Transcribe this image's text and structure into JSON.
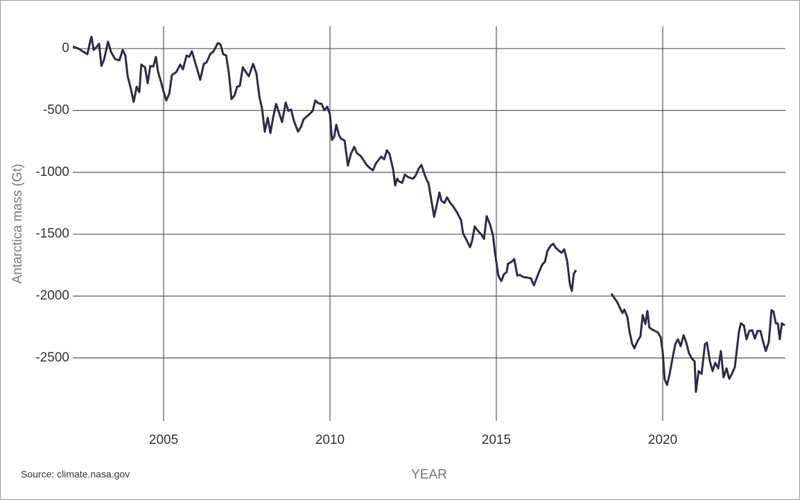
{
  "chart_data": {
    "type": "line",
    "y_label": "Antarctica mass (Gt)",
    "x_label": "YEAR",
    "source": "Source:  climate.nasa.gov",
    "color": "#2e2a45",
    "grid": true,
    "xlim": [
      2002.27,
      2023.69
    ],
    "xticks": [
      2005,
      2010,
      2015,
      2020
    ],
    "ylim": [
      -3010,
      180
    ],
    "yticks": [
      0,
      -500,
      -1000,
      -1500,
      -2000,
      -2500
    ],
    "x": [
      2002.27,
      2002.44,
      2002.6,
      2002.71,
      2002.79,
      2002.83,
      2002.9,
      2003.0,
      2003.06,
      2003.13,
      2003.21,
      2003.33,
      2003.42,
      2003.54,
      2003.67,
      2003.77,
      2003.85,
      2003.92,
      2004.0,
      2004.1,
      2004.19,
      2004.27,
      2004.33,
      2004.44,
      2004.52,
      2004.6,
      2004.69,
      2004.77,
      2004.83,
      2004.92,
      2005.0,
      2005.08,
      2005.17,
      2005.25,
      2005.38,
      2005.5,
      2005.58,
      2005.69,
      2005.77,
      2005.85,
      2005.98,
      2006.1,
      2006.21,
      2006.29,
      2006.4,
      2006.5,
      2006.63,
      2006.71,
      2006.79,
      2006.88,
      2006.96,
      2007.04,
      2007.13,
      2007.21,
      2007.29,
      2007.38,
      2007.46,
      2007.56,
      2007.69,
      2007.79,
      2007.88,
      2007.96,
      2008.04,
      2008.13,
      2008.21,
      2008.29,
      2008.38,
      2008.48,
      2008.56,
      2008.67,
      2008.75,
      2008.83,
      2008.92,
      2009.04,
      2009.13,
      2009.21,
      2009.38,
      2009.48,
      2009.56,
      2009.65,
      2009.75,
      2009.83,
      2009.92,
      2010.0,
      2010.06,
      2010.13,
      2010.19,
      2010.27,
      2010.33,
      2010.44,
      2010.54,
      2010.63,
      2010.73,
      2010.81,
      2010.92,
      2011.02,
      2011.1,
      2011.21,
      2011.29,
      2011.38,
      2011.46,
      2011.54,
      2011.63,
      2011.71,
      2011.79,
      2011.9,
      2011.96,
      2012.02,
      2012.08,
      2012.17,
      2012.25,
      2012.33,
      2012.42,
      2012.5,
      2012.58,
      2012.67,
      2012.75,
      2012.83,
      2012.9,
      2012.96,
      2013.04,
      2013.13,
      2013.21,
      2013.29,
      2013.35,
      2013.44,
      2013.52,
      2013.6,
      2013.69,
      2013.81,
      2013.94,
      2014.0,
      2014.13,
      2014.21,
      2014.27,
      2014.35,
      2014.44,
      2014.54,
      2014.63,
      2014.71,
      2014.81,
      2014.9,
      2014.96,
      2015.06,
      2015.15,
      2015.23,
      2015.31,
      2015.35,
      2015.46,
      2015.54,
      2015.63,
      2015.71,
      2015.81,
      2015.94,
      2016.04,
      2016.13,
      2016.21,
      2016.29,
      2016.38,
      2016.46,
      2016.54,
      2016.63,
      2016.71,
      2016.79,
      2016.88,
      2016.96,
      2017.04,
      2017.13,
      2017.21,
      2017.27,
      2017.33,
      2017.4,
      2017.9,
      2018.46,
      2018.54,
      2018.63,
      2018.71,
      2018.79,
      2018.85,
      2018.94,
      2019.0,
      2019.08,
      2019.15,
      2019.25,
      2019.33,
      2019.4,
      2019.48,
      2019.54,
      2019.6,
      2019.69,
      2019.77,
      2019.85,
      2019.94,
      2020.0,
      2020.06,
      2020.13,
      2020.21,
      2020.29,
      2020.38,
      2020.46,
      2020.54,
      2020.63,
      2020.71,
      2020.79,
      2020.88,
      2020.96,
      2021.0,
      2021.08,
      2021.17,
      2021.27,
      2021.33,
      2021.42,
      2021.5,
      2021.58,
      2021.67,
      2021.75,
      2021.83,
      2021.92,
      2022.0,
      2022.08,
      2022.17,
      2022.23,
      2022.29,
      2022.35,
      2022.44,
      2022.52,
      2022.6,
      2022.69,
      2022.77,
      2022.85,
      2022.94,
      2023.02,
      2023.1,
      2023.19,
      2023.27,
      2023.33,
      2023.4,
      2023.46,
      2023.52,
      2023.58,
      2023.67
    ],
    "values": [
      17,
      0,
      -28,
      -45,
      56,
      95,
      -11,
      17,
      39,
      -140,
      -89,
      56,
      -28,
      -84,
      -95,
      -11,
      -56,
      -224,
      -308,
      -431,
      -308,
      -352,
      -129,
      -151,
      -280,
      -140,
      -145,
      -67,
      -185,
      -268,
      -347,
      -419,
      -364,
      -213,
      -190,
      -129,
      -168,
      -56,
      -67,
      -22,
      -140,
      -252,
      -123,
      -112,
      -45,
      -22,
      45,
      34,
      -45,
      -56,
      -196,
      -408,
      -380,
      -308,
      -302,
      -151,
      -185,
      -224,
      -123,
      -201,
      -392,
      -487,
      -671,
      -559,
      -682,
      -559,
      -447,
      -526,
      -593,
      -436,
      -503,
      -492,
      -587,
      -671,
      -632,
      -570,
      -531,
      -503,
      -419,
      -442,
      -447,
      -498,
      -470,
      -531,
      -738,
      -710,
      -615,
      -699,
      -727,
      -744,
      -945,
      -850,
      -794,
      -845,
      -867,
      -906,
      -940,
      -968,
      -984,
      -928,
      -900,
      -873,
      -895,
      -822,
      -850,
      -979,
      -1107,
      -1051,
      -1074,
      -1085,
      -1018,
      -1035,
      -1046,
      -1051,
      -1024,
      -968,
      -940,
      -1007,
      -1057,
      -1085,
      -1214,
      -1359,
      -1264,
      -1163,
      -1230,
      -1247,
      -1202,
      -1242,
      -1270,
      -1320,
      -1387,
      -1493,
      -1560,
      -1605,
      -1555,
      -1437,
      -1471,
      -1499,
      -1538,
      -1354,
      -1421,
      -1510,
      -1650,
      -1834,
      -1879,
      -1823,
      -1807,
      -1739,
      -1723,
      -1700,
      -1834,
      -1829,
      -1846,
      -1851,
      -1857,
      -1913,
      -1857,
      -1801,
      -1745,
      -1723,
      -1633,
      -1594,
      -1577,
      -1611,
      -1633,
      -1650,
      -1622,
      -1717,
      -1902,
      -1958,
      -1818,
      -1790,
      null,
      -1980,
      -2013,
      -2047,
      -2092,
      -2137,
      -2109,
      -2170,
      -2282,
      -2383,
      -2422,
      -2360,
      -2327,
      -2153,
      -2226,
      -2120,
      -2254,
      -2271,
      -2282,
      -2293,
      -2332,
      -2450,
      -2673,
      -2718,
      -2629,
      -2511,
      -2388,
      -2349,
      -2405,
      -2316,
      -2377,
      -2461,
      -2506,
      -2528,
      -2774,
      -2606,
      -2629,
      -2388,
      -2377,
      -2528,
      -2606,
      -2539,
      -2584,
      -2444,
      -2657,
      -2584,
      -2668,
      -2629,
      -2573,
      -2433,
      -2293,
      -2220,
      -2237,
      -2349,
      -2282,
      -2276,
      -2343,
      -2282,
      -2282,
      -2371,
      -2444,
      -2371,
      -2114,
      -2125,
      -2220,
      -2220,
      -2349,
      -2220,
      -2237
    ]
  }
}
